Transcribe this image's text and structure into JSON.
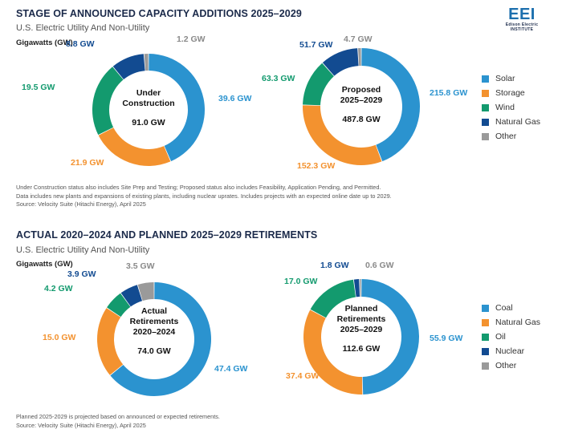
{
  "logo": {
    "mark": "EEI",
    "line1": "Edison Electric",
    "line2": "INSTITUTE"
  },
  "sections": [
    {
      "heading": "STAGE OF ANNOUNCED CAPACITY ADDITIONS 2025–2029",
      "subheading": "U.S. Electric Utility And Non-Utility",
      "unit": "Gigawatts (GW)",
      "notes": [
        "Under Construction status also includes Site Prep and Testing; Proposed status also includes Feasibility, Application Pending, and Permitted.",
        "Data includes new plants and expansions of existing plants, including nuclear uprates. Includes projects with an expected online date up to 2029.",
        "Source: Velocity Suite (Hitachi Energy), April 2025"
      ],
      "legend": [
        {
          "name": "Solar",
          "color": "#2b93cf"
        },
        {
          "name": "Storage",
          "color": "#f3922f"
        },
        {
          "name": "Wind",
          "color": "#139a6e"
        },
        {
          "name": "Natural Gas",
          "color": "#124b91"
        },
        {
          "name": "Other",
          "color": "#9a9a9a"
        }
      ]
    },
    {
      "heading": "ACTUAL 2020–2024 AND PLANNED 2025–2029 RETIREMENTS",
      "subheading": "U.S. Electric Utility And Non-Utility",
      "unit": "Gigawatts (GW)",
      "notes": [
        "Planned 2025-2029 is projected based on announced or expected retirements.",
        "Source: Velocity Suite (Hitachi Energy), April 2025"
      ],
      "legend": [
        {
          "name": "Coal",
          "color": "#2b93cf"
        },
        {
          "name": "Natural Gas",
          "color": "#f3922f"
        },
        {
          "name": "Oil",
          "color": "#139a6e"
        },
        {
          "name": "Nuclear",
          "color": "#124b91"
        },
        {
          "name": "Other",
          "color": "#9a9a9a"
        }
      ]
    }
  ],
  "chart_data": [
    {
      "type": "pie",
      "center_label": [
        "Under",
        "Construction"
      ],
      "total_label": "91.0 GW",
      "categories": [
        "Solar",
        "Storage",
        "Wind",
        "Natural Gas",
        "Other"
      ],
      "values": [
        39.6,
        21.9,
        19.5,
        8.8,
        1.2
      ],
      "value_labels": [
        "39.6 GW",
        "21.9 GW",
        "19.5 GW",
        "8.8 GW",
        "1.2 GW"
      ],
      "colors": [
        "#2b93cf",
        "#f3922f",
        "#139a6e",
        "#124b91",
        "#9a9a9a"
      ]
    },
    {
      "type": "pie",
      "center_label": [
        "Proposed",
        "2025–2029"
      ],
      "total_label": "487.8 GW",
      "categories": [
        "Solar",
        "Storage",
        "Wind",
        "Natural Gas",
        "Other"
      ],
      "values": [
        215.8,
        152.3,
        63.3,
        51.7,
        4.7
      ],
      "value_labels": [
        "215.8 GW",
        "152.3 GW",
        "63.3 GW",
        "51.7 GW",
        "4.7 GW"
      ],
      "colors": [
        "#2b93cf",
        "#f3922f",
        "#139a6e",
        "#124b91",
        "#9a9a9a"
      ]
    },
    {
      "type": "pie",
      "center_label": [
        "Actual",
        "Retirements",
        "2020–2024"
      ],
      "total_label": "74.0 GW",
      "categories": [
        "Coal",
        "Natural Gas",
        "Oil",
        "Nuclear",
        "Other"
      ],
      "values": [
        47.4,
        15.0,
        4.2,
        3.9,
        3.5
      ],
      "value_labels": [
        "47.4 GW",
        "15.0 GW",
        "4.2 GW",
        "3.9 GW",
        "3.5 GW"
      ],
      "colors": [
        "#2b93cf",
        "#f3922f",
        "#139a6e",
        "#124b91",
        "#9a9a9a"
      ]
    },
    {
      "type": "pie",
      "center_label": [
        "Planned",
        "Retirements",
        "2025–2029"
      ],
      "total_label": "112.6 GW",
      "categories": [
        "Coal",
        "Natural Gas",
        "Oil",
        "Nuclear",
        "Other"
      ],
      "values": [
        55.9,
        37.4,
        17.0,
        1.8,
        0.6
      ],
      "value_labels": [
        "55.9 GW",
        "37.4 GW",
        "17.0 GW",
        "1.8 GW",
        "0.6 GW"
      ],
      "colors": [
        "#2b93cf",
        "#f3922f",
        "#139a6e",
        "#124b91",
        "#9a9a9a"
      ]
    }
  ]
}
